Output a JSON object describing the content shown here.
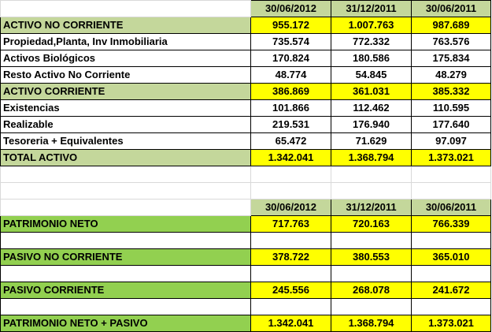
{
  "top_table": {
    "headers": [
      "30/06/2012",
      "31/12/2011",
      "30/06/2011"
    ],
    "rows": [
      {
        "label": "ACTIVO NO CORRIENTE",
        "values": [
          "955.172",
          "1.007.763",
          "987.689"
        ],
        "style": "total"
      },
      {
        "label": "Propiedad,Planta, Inv Inmobiliaria",
        "values": [
          "735.574",
          "772.332",
          "763.576"
        ],
        "style": "detail"
      },
      {
        "label": "Activos Biológicos",
        "values": [
          "170.824",
          "180.586",
          "175.834"
        ],
        "style": "detail"
      },
      {
        "label": "Resto Activo No Corriente",
        "values": [
          "48.774",
          "54.845",
          "48.279"
        ],
        "style": "detail"
      },
      {
        "label": "ACTIVO CORRIENTE",
        "values": [
          "386.869",
          "361.031",
          "385.332"
        ],
        "style": "total"
      },
      {
        "label": "Existencias",
        "values": [
          "101.866",
          "112.462",
          "110.595"
        ],
        "style": "detail"
      },
      {
        "label": "Realizable",
        "values": [
          "219.531",
          "176.940",
          "177.640"
        ],
        "style": "detail"
      },
      {
        "label": "Tesoreria + Equivalentes",
        "values": [
          "65.472",
          "71.629",
          "97.097"
        ],
        "style": "detail"
      },
      {
        "label": "TOTAL ACTIVO",
        "values": [
          "1.342.041",
          "1.368.794",
          "1.373.021"
        ],
        "style": "total"
      }
    ]
  },
  "bottom_table": {
    "headers": [
      "30/06/2012",
      "31/12/2011",
      "30/06/2011"
    ],
    "rows": [
      {
        "label": "PATRIMONIO NETO",
        "values": [
          "717.763",
          "720.163",
          "766.339"
        ]
      },
      {
        "label": "PASIVO NO CORRIENTE",
        "values": [
          "378.722",
          "380.553",
          "365.010"
        ]
      },
      {
        "label": "PASIVO CORRIENTE",
        "values": [
          "245.556",
          "268.078",
          "241.672"
        ]
      },
      {
        "label": "PATRIMONIO NETO + PASIVO",
        "values": [
          "1.342.041",
          "1.368.794",
          "1.373.021"
        ]
      }
    ]
  },
  "colors": {
    "header_green": "#c4d79b",
    "section_green": "#92d050",
    "highlight_yellow": "#ffff00"
  }
}
